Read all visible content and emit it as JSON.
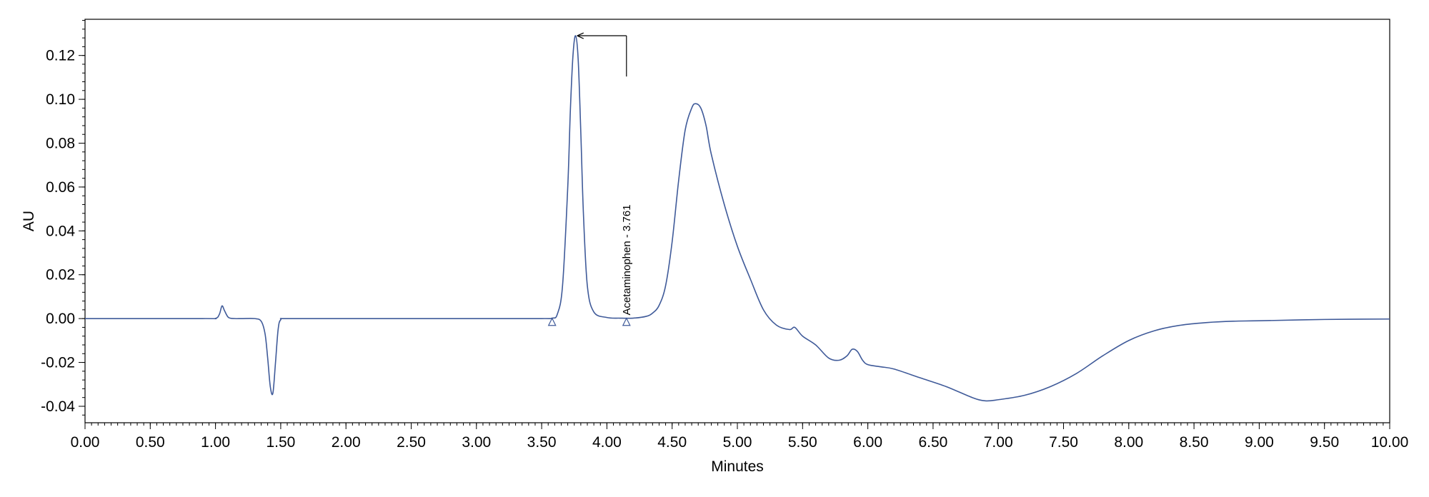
{
  "chart_data": {
    "type": "line",
    "xlabel": "Minutes",
    "ylabel": "AU",
    "xlim": [
      0.0,
      10.0
    ],
    "ylim": [
      -0.0475,
      0.1365
    ],
    "x_ticks": [
      0.0,
      0.5,
      1.0,
      1.5,
      2.0,
      2.5,
      3.0,
      3.5,
      4.0,
      4.5,
      5.0,
      5.5,
      6.0,
      6.5,
      7.0,
      7.5,
      8.0,
      8.5,
      9.0,
      9.5,
      10.0
    ],
    "x_tick_labels": [
      "0.00",
      "0.50",
      "1.00",
      "1.50",
      "2.00",
      "2.50",
      "3.00",
      "3.50",
      "4.00",
      "4.50",
      "5.00",
      "5.50",
      "6.00",
      "6.50",
      "7.00",
      "7.50",
      "8.00",
      "8.50",
      "9.00",
      "9.50",
      "10.00"
    ],
    "y_ticks": [
      -0.04,
      -0.02,
      0.0,
      0.02,
      0.04,
      0.06,
      0.08,
      0.1,
      0.12
    ],
    "y_tick_labels": [
      "-0.04",
      "-0.02",
      "0.00",
      "0.02",
      "0.04",
      "0.06",
      "0.08",
      "0.10",
      "0.12"
    ],
    "grid": false,
    "line_color": "#3f5a99",
    "series": [
      {
        "x": [
          0.0,
          0.9,
          1.0,
          1.03,
          1.05,
          1.07,
          1.1,
          1.15,
          1.2,
          1.3,
          1.35,
          1.38,
          1.4,
          1.42,
          1.44,
          1.46,
          1.48,
          1.5,
          1.55,
          2.0,
          3.0,
          3.5,
          3.58,
          3.62,
          3.66,
          3.7,
          3.72,
          3.74,
          3.76,
          3.78,
          3.8,
          3.82,
          3.85,
          3.9,
          4.0,
          4.1,
          4.2,
          4.3,
          4.35,
          4.4,
          4.45,
          4.5,
          4.55,
          4.6,
          4.65,
          4.68,
          4.72,
          4.76,
          4.8,
          4.9,
          5.0,
          5.1,
          5.2,
          5.3,
          5.4,
          5.44,
          5.5,
          5.6,
          5.7,
          5.78,
          5.84,
          5.88,
          5.92,
          5.96,
          6.0,
          6.1,
          6.2,
          6.4,
          6.6,
          6.8,
          6.9,
          7.0,
          7.2,
          7.4,
          7.6,
          7.8,
          8.0,
          8.2,
          8.4,
          8.6,
          8.8,
          9.0,
          9.5,
          10.0
        ],
        "y": [
          0.0,
          0.0,
          0.0001,
          0.002,
          0.0058,
          0.0035,
          0.0005,
          0.0,
          0.0,
          0.0,
          -0.0012,
          -0.007,
          -0.018,
          -0.031,
          -0.034,
          -0.02,
          -0.005,
          -0.0005,
          0.0,
          0.0,
          0.0,
          0.0,
          0.0002,
          0.002,
          0.015,
          0.06,
          0.095,
          0.12,
          0.129,
          0.118,
          0.085,
          0.048,
          0.015,
          0.003,
          0.0005,
          0.0002,
          0.0002,
          0.001,
          0.0025,
          0.006,
          0.015,
          0.035,
          0.063,
          0.086,
          0.096,
          0.098,
          0.096,
          0.088,
          0.075,
          0.052,
          0.033,
          0.018,
          0.004,
          -0.003,
          -0.005,
          -0.004,
          -0.008,
          -0.012,
          -0.018,
          -0.019,
          -0.017,
          -0.014,
          -0.015,
          -0.019,
          -0.021,
          -0.022,
          -0.023,
          -0.027,
          -0.031,
          -0.036,
          -0.0375,
          -0.037,
          -0.035,
          -0.031,
          -0.025,
          -0.017,
          -0.01,
          -0.0055,
          -0.003,
          -0.0018,
          -0.0012,
          -0.001,
          -0.0004,
          -0.0002
        ]
      }
    ],
    "baseline_markers": [
      {
        "x": 3.58,
        "y": -0.0015
      },
      {
        "x": 4.15,
        "y": -0.0015
      }
    ],
    "annotations": [
      {
        "text": "Acetaminophen - 3.761",
        "x": 4.15,
        "y": 0.0,
        "target_x": 3.761,
        "target_y": 0.129
      }
    ]
  }
}
